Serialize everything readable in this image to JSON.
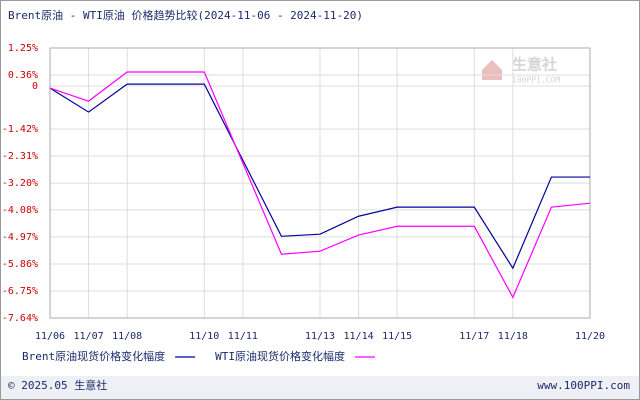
{
  "chart_data": {
    "type": "line",
    "title": "Brent原油 - WTI原油 价格趋势比较(2024-11-06 - 2024-11-20)",
    "categories": [
      "11/06",
      "11/07",
      "11/08",
      null,
      "11/10",
      "11/11",
      null,
      "11/13",
      "11/14",
      "11/15",
      null,
      "11/17",
      "11/18",
      null,
      "11/20"
    ],
    "series": [
      {
        "name": "Brent原油现货价格变化幅度",
        "color": "#000099",
        "values": [
          -0.07,
          -0.86,
          0.06,
          null,
          0.06,
          null,
          -4.95,
          -4.88,
          -4.29,
          -3.99,
          null,
          -3.99,
          -6.0,
          -3.0,
          -3.0
        ]
      },
      {
        "name": "WTI原油现货价格变化幅度",
        "color": "#ff00ff",
        "values": [
          -0.07,
          -0.5,
          0.46,
          null,
          0.46,
          null,
          -5.54,
          -5.44,
          -4.91,
          -4.62,
          null,
          -4.62,
          -6.96,
          -3.99,
          -3.86
        ]
      }
    ],
    "ylim": [
      -7.64,
      1.25
    ],
    "yticks": [
      {
        "value": 1.25,
        "label": "1.25%"
      },
      {
        "value": 0.36,
        "label": "0.36%"
      },
      0,
      {
        "value": -1.42,
        "label": "-1.42%"
      },
      {
        "value": -2.31,
        "label": "-2.31%"
      },
      {
        "value": -3.2,
        "label": "-3.20%"
      },
      {
        "value": -4.08,
        "label": "-4.08%"
      },
      {
        "value": -4.97,
        "label": "-4.97%"
      },
      {
        "value": -5.86,
        "label": "-5.86%"
      },
      {
        "value": -6.75,
        "label": "-6.75%"
      },
      {
        "value": -7.64,
        "label": "-7.64%"
      }
    ],
    "grid": true,
    "watermark": "生意社",
    "watermark_sub": "100PPI.COM",
    "footer_left": "© 2025.05 生意社",
    "footer_right": "www.100PPI.com"
  }
}
